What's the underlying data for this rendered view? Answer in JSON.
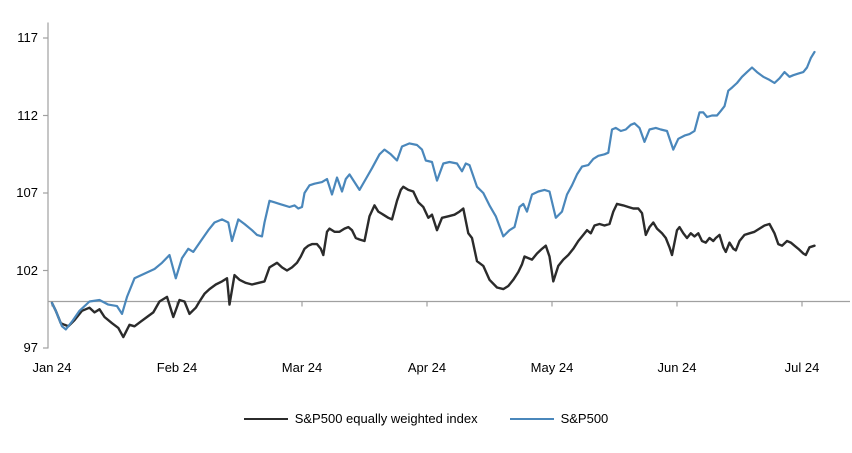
{
  "chart_data": {
    "type": "line",
    "title": "",
    "xlabel": "",
    "ylabel": "",
    "x_unit": "months since Jan 2024",
    "x_tick_labels": [
      "Jan 24",
      "Feb 24",
      "Mar 24",
      "Apr 24",
      "May 24",
      "Jun 24",
      "Jul 24"
    ],
    "x_tick_positions": [
      0,
      1,
      2,
      3,
      4,
      5,
      6
    ],
    "y_tick_labels": [
      "97",
      "102",
      "107",
      "112",
      "117"
    ],
    "y_tick_values": [
      97,
      102,
      107,
      112,
      117
    ],
    "ylim": [
      97,
      118
    ],
    "xlim": [
      0,
      6.38
    ],
    "baseline_value": 100,
    "grid": false,
    "legend_position": "bottom-center",
    "axis_color": "#A0A0A0",
    "text_color": "#000000",
    "series": [
      {
        "name": "S&P500 equally weighted index",
        "color": "#2B2B2B",
        "stroke_width": 2.4,
        "points": [
          [
            0.0,
            99.9
          ],
          [
            0.03,
            99.4
          ],
          [
            0.07,
            98.6
          ],
          [
            0.1,
            98.5
          ],
          [
            0.13,
            98.4
          ],
          [
            0.18,
            98.8
          ],
          [
            0.24,
            99.4
          ],
          [
            0.3,
            99.6
          ],
          [
            0.34,
            99.3
          ],
          [
            0.38,
            99.5
          ],
          [
            0.42,
            99.0
          ],
          [
            0.48,
            98.6
          ],
          [
            0.53,
            98.3
          ],
          [
            0.57,
            97.7
          ],
          [
            0.62,
            98.5
          ],
          [
            0.66,
            98.4
          ],
          [
            0.71,
            98.7
          ],
          [
            0.76,
            99.0
          ],
          [
            0.81,
            99.3
          ],
          [
            0.86,
            100.0
          ],
          [
            0.92,
            100.3
          ],
          [
            0.97,
            99.0
          ],
          [
            1.02,
            100.1
          ],
          [
            1.06,
            100.0
          ],
          [
            1.1,
            99.2
          ],
          [
            1.15,
            99.6
          ],
          [
            1.18,
            100.0
          ],
          [
            1.22,
            100.5
          ],
          [
            1.26,
            100.8
          ],
          [
            1.31,
            101.1
          ],
          [
            1.36,
            101.3
          ],
          [
            1.4,
            101.5
          ],
          [
            1.42,
            99.8
          ],
          [
            1.46,
            101.7
          ],
          [
            1.5,
            101.4
          ],
          [
            1.55,
            101.2
          ],
          [
            1.6,
            101.1
          ],
          [
            1.65,
            101.2
          ],
          [
            1.7,
            101.3
          ],
          [
            1.74,
            102.2
          ],
          [
            1.8,
            102.5
          ],
          [
            1.84,
            102.2
          ],
          [
            1.88,
            102.0
          ],
          [
            1.92,
            102.2
          ],
          [
            1.96,
            102.5
          ],
          [
            1.99,
            102.9
          ],
          [
            2.02,
            103.4
          ],
          [
            2.05,
            103.6
          ],
          [
            2.08,
            103.7
          ],
          [
            2.12,
            103.7
          ],
          [
            2.15,
            103.4
          ],
          [
            2.17,
            103.0
          ],
          [
            2.2,
            104.5
          ],
          [
            2.22,
            104.7
          ],
          [
            2.26,
            104.5
          ],
          [
            2.3,
            104.5
          ],
          [
            2.34,
            104.7
          ],
          [
            2.37,
            104.8
          ],
          [
            2.4,
            104.6
          ],
          [
            2.43,
            104.1
          ],
          [
            2.46,
            104.0
          ],
          [
            2.5,
            103.9
          ],
          [
            2.54,
            105.5
          ],
          [
            2.58,
            106.2
          ],
          [
            2.61,
            105.8
          ],
          [
            2.65,
            105.6
          ],
          [
            2.69,
            105.4
          ],
          [
            2.72,
            105.3
          ],
          [
            2.76,
            106.5
          ],
          [
            2.79,
            107.2
          ],
          [
            2.81,
            107.4
          ],
          [
            2.85,
            107.2
          ],
          [
            2.89,
            107.1
          ],
          [
            2.93,
            106.4
          ],
          [
            2.97,
            106.1
          ],
          [
            3.01,
            105.4
          ],
          [
            3.04,
            105.6
          ],
          [
            3.08,
            104.6
          ],
          [
            3.12,
            105.4
          ],
          [
            3.17,
            105.5
          ],
          [
            3.22,
            105.6
          ],
          [
            3.26,
            105.8
          ],
          [
            3.29,
            106.0
          ],
          [
            3.33,
            104.4
          ],
          [
            3.36,
            104.1
          ],
          [
            3.4,
            102.6
          ],
          [
            3.45,
            102.3
          ],
          [
            3.5,
            101.4
          ],
          [
            3.56,
            100.9
          ],
          [
            3.61,
            100.8
          ],
          [
            3.65,
            101.0
          ],
          [
            3.69,
            101.4
          ],
          [
            3.73,
            101.9
          ],
          [
            3.76,
            102.4
          ],
          [
            3.78,
            102.9
          ],
          [
            3.81,
            102.8
          ],
          [
            3.84,
            102.7
          ],
          [
            3.88,
            103.1
          ],
          [
            3.92,
            103.4
          ],
          [
            3.95,
            103.6
          ],
          [
            3.98,
            102.9
          ],
          [
            4.01,
            101.3
          ],
          [
            4.05,
            102.3
          ],
          [
            4.09,
            102.7
          ],
          [
            4.13,
            103.0
          ],
          [
            4.17,
            103.4
          ],
          [
            4.21,
            103.9
          ],
          [
            4.25,
            104.3
          ],
          [
            4.28,
            104.6
          ],
          [
            4.31,
            104.4
          ],
          [
            4.34,
            104.9
          ],
          [
            4.38,
            105.0
          ],
          [
            4.42,
            104.9
          ],
          [
            4.46,
            105.0
          ],
          [
            4.49,
            105.8
          ],
          [
            4.52,
            106.3
          ],
          [
            4.57,
            106.2
          ],
          [
            4.61,
            106.1
          ],
          [
            4.65,
            106.0
          ],
          [
            4.69,
            106.0
          ],
          [
            4.72,
            105.7
          ],
          [
            4.75,
            104.3
          ],
          [
            4.78,
            104.8
          ],
          [
            4.81,
            105.1
          ],
          [
            4.84,
            104.7
          ],
          [
            4.88,
            104.4
          ],
          [
            4.91,
            104.1
          ],
          [
            4.94,
            103.5
          ],
          [
            4.96,
            103.0
          ],
          [
            5.0,
            104.6
          ],
          [
            5.02,
            104.8
          ],
          [
            5.05,
            104.4
          ],
          [
            5.08,
            104.1
          ],
          [
            5.11,
            104.4
          ],
          [
            5.14,
            104.2
          ],
          [
            5.17,
            104.4
          ],
          [
            5.2,
            103.9
          ],
          [
            5.23,
            103.8
          ],
          [
            5.26,
            104.1
          ],
          [
            5.29,
            103.9
          ],
          [
            5.31,
            104.1
          ],
          [
            5.34,
            104.3
          ],
          [
            5.37,
            103.5
          ],
          [
            5.39,
            103.2
          ],
          [
            5.42,
            103.8
          ],
          [
            5.45,
            103.4
          ],
          [
            5.47,
            103.3
          ],
          [
            5.5,
            103.9
          ],
          [
            5.54,
            104.3
          ],
          [
            5.58,
            104.4
          ],
          [
            5.62,
            104.5
          ],
          [
            5.66,
            104.7
          ],
          [
            5.7,
            104.9
          ],
          [
            5.74,
            105.0
          ],
          [
            5.78,
            104.4
          ],
          [
            5.81,
            103.7
          ],
          [
            5.84,
            103.6
          ],
          [
            5.88,
            103.9
          ],
          [
            5.91,
            103.8
          ],
          [
            5.94,
            103.6
          ],
          [
            5.97,
            103.4
          ],
          [
            6.01,
            103.1
          ],
          [
            6.03,
            103.0
          ],
          [
            6.06,
            103.5
          ],
          [
            6.1,
            103.6
          ]
        ]
      },
      {
        "name": "S&P500",
        "color": "#4A87BB",
        "stroke_width": 2.2,
        "points": [
          [
            0.0,
            99.9
          ],
          [
            0.03,
            99.4
          ],
          [
            0.08,
            98.4
          ],
          [
            0.11,
            98.2
          ],
          [
            0.16,
            98.7
          ],
          [
            0.22,
            99.4
          ],
          [
            0.3,
            100.0
          ],
          [
            0.38,
            100.1
          ],
          [
            0.45,
            99.8
          ],
          [
            0.52,
            99.7
          ],
          [
            0.56,
            99.2
          ],
          [
            0.6,
            100.3
          ],
          [
            0.66,
            101.5
          ],
          [
            0.74,
            101.8
          ],
          [
            0.82,
            102.1
          ],
          [
            0.88,
            102.5
          ],
          [
            0.94,
            103.0
          ],
          [
            0.99,
            101.5
          ],
          [
            1.04,
            102.8
          ],
          [
            1.09,
            103.4
          ],
          [
            1.13,
            103.2
          ],
          [
            1.19,
            103.9
          ],
          [
            1.25,
            104.6
          ],
          [
            1.3,
            105.1
          ],
          [
            1.36,
            105.3
          ],
          [
            1.41,
            105.1
          ],
          [
            1.44,
            103.9
          ],
          [
            1.49,
            105.3
          ],
          [
            1.54,
            105.0
          ],
          [
            1.6,
            104.6
          ],
          [
            1.64,
            104.3
          ],
          [
            1.68,
            104.2
          ],
          [
            1.7,
            105.1
          ],
          [
            1.74,
            106.5
          ],
          [
            1.78,
            106.4
          ],
          [
            1.82,
            106.3
          ],
          [
            1.86,
            106.2
          ],
          [
            1.9,
            106.1
          ],
          [
            1.94,
            106.2
          ],
          [
            1.97,
            106.0
          ],
          [
            2.0,
            106.1
          ],
          [
            2.02,
            107.0
          ],
          [
            2.06,
            107.5
          ],
          [
            2.1,
            107.6
          ],
          [
            2.16,
            107.7
          ],
          [
            2.2,
            107.9
          ],
          [
            2.24,
            106.9
          ],
          [
            2.28,
            108.0
          ],
          [
            2.32,
            107.1
          ],
          [
            2.35,
            107.9
          ],
          [
            2.38,
            108.2
          ],
          [
            2.42,
            107.7
          ],
          [
            2.46,
            107.2
          ],
          [
            2.51,
            107.9
          ],
          [
            2.56,
            108.6
          ],
          [
            2.62,
            109.5
          ],
          [
            2.66,
            109.8
          ],
          [
            2.71,
            109.5
          ],
          [
            2.76,
            109.1
          ],
          [
            2.8,
            110.0
          ],
          [
            2.86,
            110.2
          ],
          [
            2.92,
            110.1
          ],
          [
            2.96,
            109.8
          ],
          [
            2.99,
            109.1
          ],
          [
            3.04,
            109.0
          ],
          [
            3.08,
            107.8
          ],
          [
            3.13,
            108.9
          ],
          [
            3.18,
            109.0
          ],
          [
            3.24,
            108.9
          ],
          [
            3.28,
            108.4
          ],
          [
            3.31,
            108.9
          ],
          [
            3.34,
            108.8
          ],
          [
            3.4,
            107.4
          ],
          [
            3.45,
            107.0
          ],
          [
            3.5,
            106.2
          ],
          [
            3.55,
            105.5
          ],
          [
            3.61,
            104.2
          ],
          [
            3.66,
            104.6
          ],
          [
            3.7,
            104.8
          ],
          [
            3.74,
            106.1
          ],
          [
            3.77,
            106.3
          ],
          [
            3.8,
            105.8
          ],
          [
            3.84,
            106.9
          ],
          [
            3.89,
            107.1
          ],
          [
            3.94,
            107.2
          ],
          [
            3.98,
            107.1
          ],
          [
            4.03,
            105.4
          ],
          [
            4.08,
            105.8
          ],
          [
            4.12,
            106.9
          ],
          [
            4.16,
            107.5
          ],
          [
            4.2,
            108.2
          ],
          [
            4.24,
            108.7
          ],
          [
            4.29,
            108.8
          ],
          [
            4.33,
            109.2
          ],
          [
            4.37,
            109.4
          ],
          [
            4.42,
            109.5
          ],
          [
            4.45,
            109.6
          ],
          [
            4.48,
            111.1
          ],
          [
            4.51,
            111.2
          ],
          [
            4.55,
            111.0
          ],
          [
            4.59,
            111.1
          ],
          [
            4.63,
            111.4
          ],
          [
            4.66,
            111.5
          ],
          [
            4.7,
            111.2
          ],
          [
            4.74,
            110.3
          ],
          [
            4.78,
            111.1
          ],
          [
            4.83,
            111.2
          ],
          [
            4.87,
            111.1
          ],
          [
            4.92,
            111.0
          ],
          [
            4.97,
            109.8
          ],
          [
            5.01,
            110.5
          ],
          [
            5.06,
            110.7
          ],
          [
            5.1,
            110.8
          ],
          [
            5.14,
            111.0
          ],
          [
            5.18,
            112.2
          ],
          [
            5.21,
            112.2
          ],
          [
            5.24,
            111.9
          ],
          [
            5.28,
            112.0
          ],
          [
            5.32,
            112.0
          ],
          [
            5.35,
            112.3
          ],
          [
            5.38,
            112.6
          ],
          [
            5.41,
            113.6
          ],
          [
            5.44,
            113.8
          ],
          [
            5.48,
            114.1
          ],
          [
            5.52,
            114.5
          ],
          [
            5.56,
            114.8
          ],
          [
            5.6,
            115.1
          ],
          [
            5.64,
            114.8
          ],
          [
            5.69,
            114.5
          ],
          [
            5.74,
            114.3
          ],
          [
            5.78,
            114.1
          ],
          [
            5.82,
            114.4
          ],
          [
            5.86,
            114.8
          ],
          [
            5.9,
            114.5
          ],
          [
            5.93,
            114.6
          ],
          [
            5.97,
            114.7
          ],
          [
            6.01,
            114.8
          ],
          [
            6.04,
            115.1
          ],
          [
            6.07,
            115.7
          ],
          [
            6.1,
            116.1
          ]
        ]
      }
    ]
  }
}
